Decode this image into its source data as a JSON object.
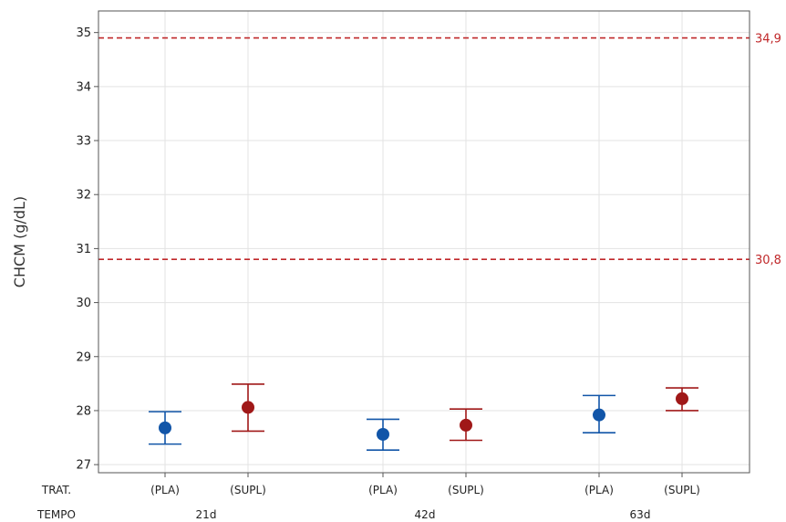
{
  "chart_data": {
    "type": "scatter",
    "ylabel": "CHCM (g/dL)",
    "ylim": [
      26.85,
      35.4
    ],
    "yticks": [
      27,
      28,
      29,
      30,
      31,
      32,
      33,
      34,
      35
    ],
    "grid": true,
    "row_titles": {
      "treatment": "TRAT.",
      "time": "TEMPO"
    },
    "groups": [
      {
        "time": "21d",
        "points": [
          {
            "treatment": "(PLA)",
            "mean": 27.68,
            "lower": 27.38,
            "upper": 27.98,
            "color": "#1155a8"
          },
          {
            "treatment": "(SUPL)",
            "mean": 28.06,
            "lower": 27.62,
            "upper": 28.49,
            "color": "#a01818"
          }
        ]
      },
      {
        "time": "42d",
        "points": [
          {
            "treatment": "(PLA)",
            "mean": 27.56,
            "lower": 27.27,
            "upper": 27.84,
            "color": "#1155a8"
          },
          {
            "treatment": "(SUPL)",
            "mean": 27.73,
            "lower": 27.45,
            "upper": 28.03,
            "color": "#a01818"
          }
        ]
      },
      {
        "time": "63d",
        "points": [
          {
            "treatment": "(PLA)",
            "mean": 27.92,
            "lower": 27.59,
            "upper": 28.28,
            "color": "#1155a8"
          },
          {
            "treatment": "(SUPL)",
            "mean": 28.22,
            "lower": 28.0,
            "upper": 28.42,
            "color": "#a01818"
          }
        ]
      }
    ],
    "reference_lines": [
      {
        "value": 34.9,
        "label": "34,9",
        "color": "#c0282a"
      },
      {
        "value": 30.8,
        "label": "30,8",
        "color": "#c0282a"
      }
    ]
  }
}
